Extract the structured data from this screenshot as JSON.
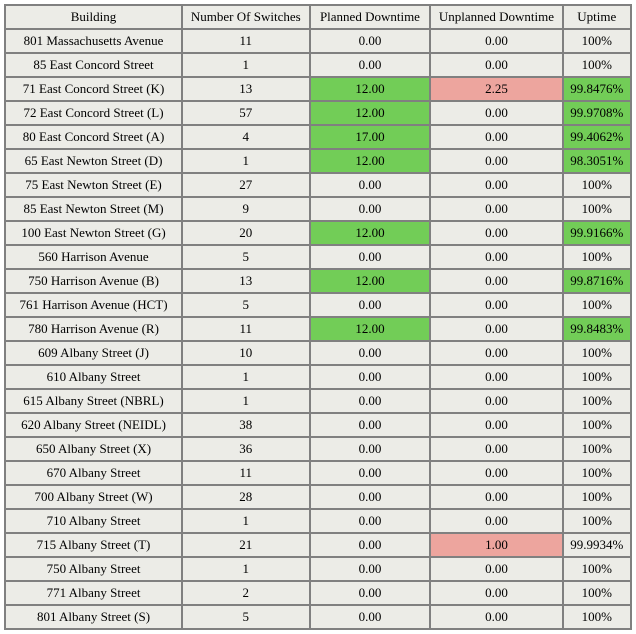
{
  "columns": [
    {
      "key": "building",
      "label": "Building"
    },
    {
      "key": "switches",
      "label": "Number Of Switches"
    },
    {
      "key": "planned",
      "label": "Planned Downtime"
    },
    {
      "key": "unplanned",
      "label": "Unplanned Downtime"
    },
    {
      "key": "uptime",
      "label": "Uptime"
    }
  ],
  "colors": {
    "cell_bg": "#ecece7",
    "border": "#808080",
    "highlight_green": "#72cd57",
    "highlight_red": "#eda59e"
  },
  "rows": [
    {
      "building": "801 Massachusetts Avenue",
      "switches": "11",
      "planned": "0.00",
      "planned_hl": null,
      "unplanned": "0.00",
      "unplanned_hl": null,
      "uptime": "100%",
      "uptime_hl": null
    },
    {
      "building": "85 East Concord Street",
      "switches": "1",
      "planned": "0.00",
      "planned_hl": null,
      "unplanned": "0.00",
      "unplanned_hl": null,
      "uptime": "100%",
      "uptime_hl": null
    },
    {
      "building": "71 East Concord Street (K)",
      "switches": "13",
      "planned": "12.00",
      "planned_hl": "green",
      "unplanned": "2.25",
      "unplanned_hl": "red",
      "uptime": "99.8476%",
      "uptime_hl": "green"
    },
    {
      "building": "72 East Concord Street (L)",
      "switches": "57",
      "planned": "12.00",
      "planned_hl": "green",
      "unplanned": "0.00",
      "unplanned_hl": null,
      "uptime": "99.9708%",
      "uptime_hl": "green"
    },
    {
      "building": "80 East Concord Street (A)",
      "switches": "4",
      "planned": "17.00",
      "planned_hl": "green",
      "unplanned": "0.00",
      "unplanned_hl": null,
      "uptime": "99.4062%",
      "uptime_hl": "green"
    },
    {
      "building": "65 East Newton Street (D)",
      "switches": "1",
      "planned": "12.00",
      "planned_hl": "green",
      "unplanned": "0.00",
      "unplanned_hl": null,
      "uptime": "98.3051%",
      "uptime_hl": "green"
    },
    {
      "building": "75 East Newton Street (E)",
      "switches": "27",
      "planned": "0.00",
      "planned_hl": null,
      "unplanned": "0.00",
      "unplanned_hl": null,
      "uptime": "100%",
      "uptime_hl": null
    },
    {
      "building": "85 East Newton Street (M)",
      "switches": "9",
      "planned": "0.00",
      "planned_hl": null,
      "unplanned": "0.00",
      "unplanned_hl": null,
      "uptime": "100%",
      "uptime_hl": null
    },
    {
      "building": "100 East Newton Street (G)",
      "switches": "20",
      "planned": "12.00",
      "planned_hl": "green",
      "unplanned": "0.00",
      "unplanned_hl": null,
      "uptime": "99.9166%",
      "uptime_hl": "green"
    },
    {
      "building": "560 Harrison Avenue",
      "switches": "5",
      "planned": "0.00",
      "planned_hl": null,
      "unplanned": "0.00",
      "unplanned_hl": null,
      "uptime": "100%",
      "uptime_hl": null
    },
    {
      "building": "750 Harrison Avenue (B)",
      "switches": "13",
      "planned": "12.00",
      "planned_hl": "green",
      "unplanned": "0.00",
      "unplanned_hl": null,
      "uptime": "99.8716%",
      "uptime_hl": "green"
    },
    {
      "building": "761 Harrison Avenue (HCT)",
      "switches": "5",
      "planned": "0.00",
      "planned_hl": null,
      "unplanned": "0.00",
      "unplanned_hl": null,
      "uptime": "100%",
      "uptime_hl": null
    },
    {
      "building": "780 Harrison Avenue (R)",
      "switches": "11",
      "planned": "12.00",
      "planned_hl": "green",
      "unplanned": "0.00",
      "unplanned_hl": null,
      "uptime": "99.8483%",
      "uptime_hl": "green"
    },
    {
      "building": "609 Albany Street (J)",
      "switches": "10",
      "planned": "0.00",
      "planned_hl": null,
      "unplanned": "0.00",
      "unplanned_hl": null,
      "uptime": "100%",
      "uptime_hl": null
    },
    {
      "building": "610 Albany Street",
      "switches": "1",
      "planned": "0.00",
      "planned_hl": null,
      "unplanned": "0.00",
      "unplanned_hl": null,
      "uptime": "100%",
      "uptime_hl": null
    },
    {
      "building": "615 Albany Street (NBRL)",
      "switches": "1",
      "planned": "0.00",
      "planned_hl": null,
      "unplanned": "0.00",
      "unplanned_hl": null,
      "uptime": "100%",
      "uptime_hl": null
    },
    {
      "building": "620 Albany Street (NEIDL)",
      "switches": "38",
      "planned": "0.00",
      "planned_hl": null,
      "unplanned": "0.00",
      "unplanned_hl": null,
      "uptime": "100%",
      "uptime_hl": null
    },
    {
      "building": "650 Albany Street (X)",
      "switches": "36",
      "planned": "0.00",
      "planned_hl": null,
      "unplanned": "0.00",
      "unplanned_hl": null,
      "uptime": "100%",
      "uptime_hl": null
    },
    {
      "building": "670 Albany Street",
      "switches": "11",
      "planned": "0.00",
      "planned_hl": null,
      "unplanned": "0.00",
      "unplanned_hl": null,
      "uptime": "100%",
      "uptime_hl": null
    },
    {
      "building": "700 Albany Street (W)",
      "switches": "28",
      "planned": "0.00",
      "planned_hl": null,
      "unplanned": "0.00",
      "unplanned_hl": null,
      "uptime": "100%",
      "uptime_hl": null
    },
    {
      "building": "710 Albany Street",
      "switches": "1",
      "planned": "0.00",
      "planned_hl": null,
      "unplanned": "0.00",
      "unplanned_hl": null,
      "uptime": "100%",
      "uptime_hl": null
    },
    {
      "building": "715 Albany Street (T)",
      "switches": "21",
      "planned": "0.00",
      "planned_hl": null,
      "unplanned": "1.00",
      "unplanned_hl": "red",
      "uptime": "99.9934%",
      "uptime_hl": null
    },
    {
      "building": "750 Albany Street",
      "switches": "1",
      "planned": "0.00",
      "planned_hl": null,
      "unplanned": "0.00",
      "unplanned_hl": null,
      "uptime": "100%",
      "uptime_hl": null
    },
    {
      "building": "771 Albany Street",
      "switches": "2",
      "planned": "0.00",
      "planned_hl": null,
      "unplanned": "0.00",
      "unplanned_hl": null,
      "uptime": "100%",
      "uptime_hl": null
    },
    {
      "building": "801 Albany Street (S)",
      "switches": "5",
      "planned": "0.00",
      "planned_hl": null,
      "unplanned": "0.00",
      "unplanned_hl": null,
      "uptime": "100%",
      "uptime_hl": null
    }
  ]
}
